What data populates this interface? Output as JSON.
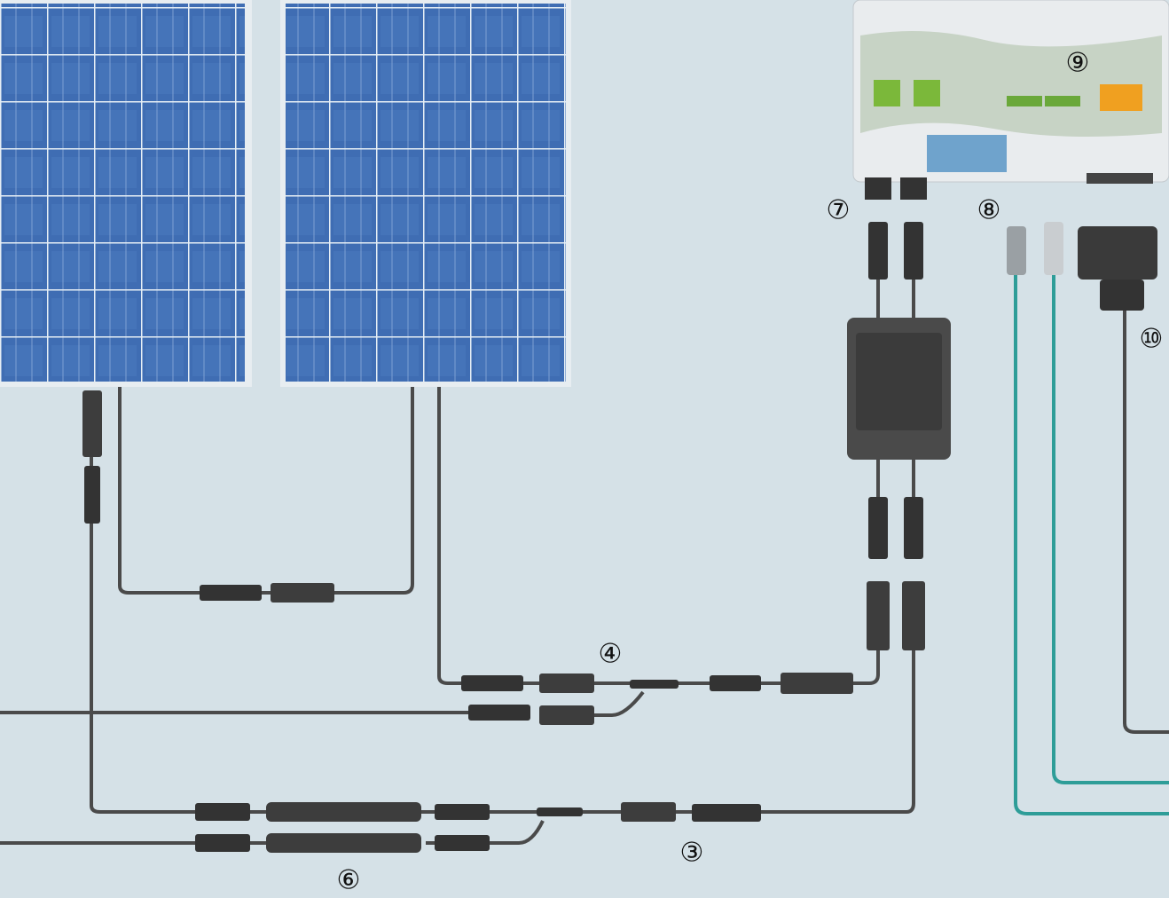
{
  "markers": [
    "⑨",
    "⑦",
    "⑧",
    "⑩",
    "④",
    "③",
    "⑥"
  ]
}
